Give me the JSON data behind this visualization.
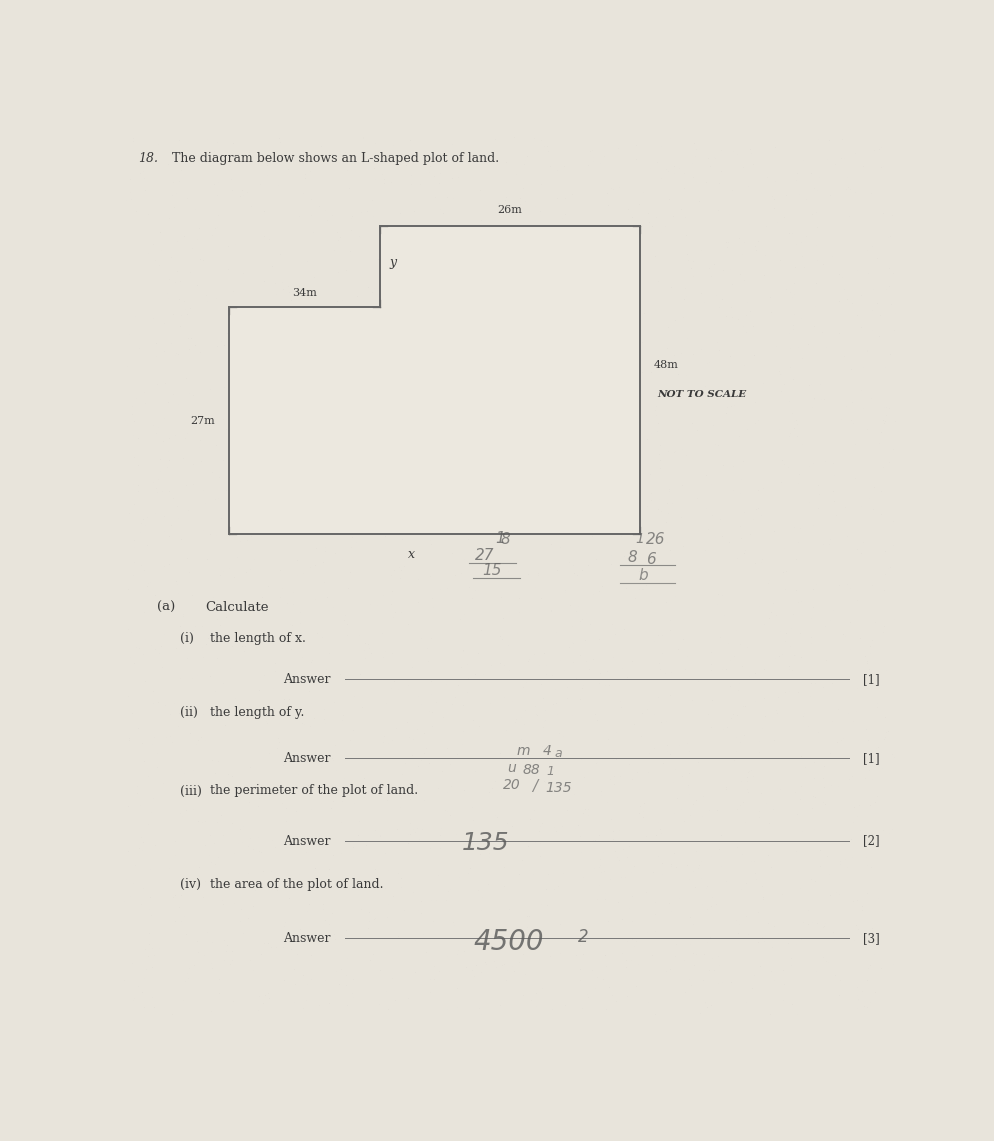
{
  "question_number": "18.",
  "question_text": "The diagram below shows an L-shaped plot of land.",
  "not_to_scale": "NOT TO SCALE",
  "dim_top": "26m",
  "dim_left_upper": "34m",
  "dim_right": "48m",
  "dim_left_lower": "27m",
  "dim_bottom": "x",
  "dim_inner_vert": "y",
  "part_a_label": "(a)",
  "part_a_text": "Calculate",
  "part_i_label": "(i)",
  "part_i_text": "the length of x.",
  "answer_label": "Answer",
  "marks_1": "[1]",
  "part_ii_label": "(ii)",
  "part_ii_text": "the length of y.",
  "marks_2": "[1]",
  "part_iii_label": "(iii)",
  "part_iii_text": "the perimeter of the plot of land.",
  "marks_3": "[2]",
  "answer_3_written": "135",
  "part_iv_label": "(iv)",
  "part_iv_text": "the area of the plot of land.",
  "marks_4": "[3]",
  "bg_color": "#e8e4db",
  "shape_edge_color": "#666666",
  "text_color": "#3a3a3a",
  "handwritten_color": "#5a5a5a",
  "line_color": "#777777"
}
